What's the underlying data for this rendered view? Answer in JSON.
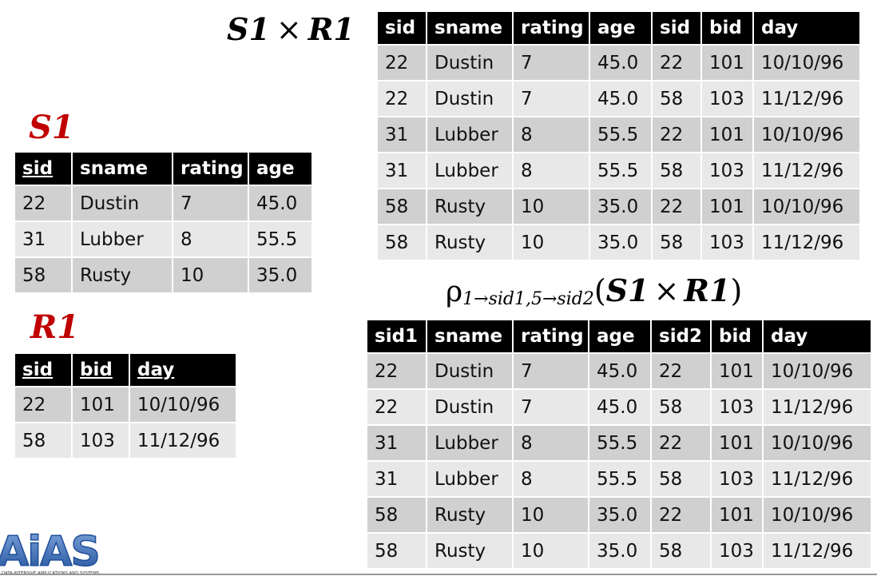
{
  "titles": {
    "product": "S1 × R1",
    "product_left": "S1",
    "product_times": "×",
    "product_right": "R1",
    "s1": "S1",
    "r1": "R1",
    "rename_rho": "ρ",
    "rename_sub": "1→sid1,5→sid2",
    "rename_arg_left": "S1",
    "rename_arg_times": "×",
    "rename_arg_right": "R1",
    "paren_open": "(",
    "paren_close": ")"
  },
  "s1_table": {
    "headers": [
      "sid",
      "sname",
      "rating",
      "age"
    ],
    "rows": [
      [
        "22",
        "Dustin",
        "7",
        "45.0"
      ],
      [
        "31",
        "Lubber",
        "8",
        "55.5"
      ],
      [
        "58",
        "Rusty",
        "10",
        "35.0"
      ]
    ]
  },
  "r1_table": {
    "headers": [
      "sid",
      "bid",
      "day"
    ],
    "rows": [
      [
        "22",
        "101",
        "10/10/96"
      ],
      [
        "58",
        "103",
        "11/12/96"
      ]
    ]
  },
  "product_table": {
    "headers": [
      "sid",
      "sname",
      "rating",
      "age",
      "sid",
      "bid",
      "day"
    ],
    "rows": [
      [
        "22",
        "Dustin",
        "7",
        "45.0",
        "22",
        "101",
        "10/10/96"
      ],
      [
        "22",
        "Dustin",
        "7",
        "45.0",
        "58",
        "103",
        "11/12/96"
      ],
      [
        "31",
        "Lubber",
        "8",
        "55.5",
        "22",
        "101",
        "10/10/96"
      ],
      [
        "31",
        "Lubber",
        "8",
        "55.5",
        "58",
        "103",
        "11/12/96"
      ],
      [
        "58",
        "Rusty",
        "10",
        "35.0",
        "22",
        "101",
        "10/10/96"
      ],
      [
        "58",
        "Rusty",
        "10",
        "35.0",
        "58",
        "103",
        "11/12/96"
      ]
    ]
  },
  "renamed_table": {
    "headers": [
      "sid1",
      "sname",
      "rating",
      "age",
      "sid2",
      "bid",
      "day"
    ],
    "rows": [
      [
        "22",
        "Dustin",
        "7",
        "45.0",
        "22",
        "101",
        "10/10/96"
      ],
      [
        "22",
        "Dustin",
        "7",
        "45.0",
        "58",
        "103",
        "11/12/96"
      ],
      [
        "31",
        "Lubber",
        "8",
        "55.5",
        "22",
        "101",
        "10/10/96"
      ],
      [
        "31",
        "Lubber",
        "8",
        "55.5",
        "58",
        "103",
        "11/12/96"
      ],
      [
        "58",
        "Rusty",
        "10",
        "35.0",
        "22",
        "101",
        "10/10/96"
      ],
      [
        "58",
        "Rusty",
        "10",
        "35.0",
        "58",
        "103",
        "11/12/96"
      ]
    ]
  },
  "logo": {
    "text": "AiAS",
    "tagline": "DATA-INTENSIVE APPLICATIONS AND SYSTEMS"
  },
  "colors": {
    "header_bg": "#000000",
    "row_dark": "#d0d0d0",
    "row_light": "#e8e8e8",
    "label_red": "#c00000",
    "logo_blue": "#1f4e9a"
  }
}
